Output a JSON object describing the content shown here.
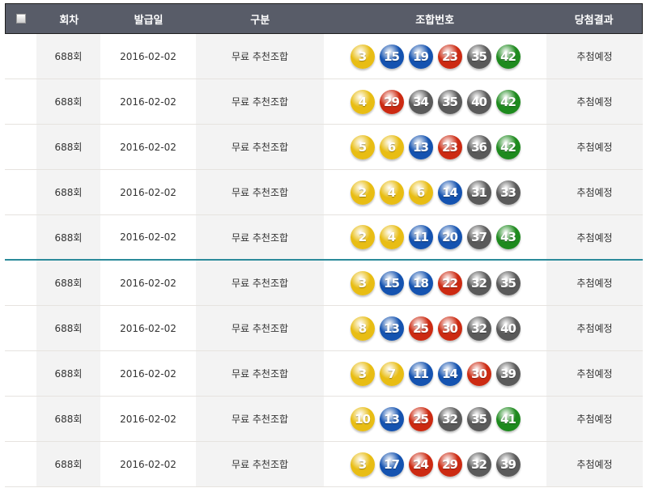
{
  "header": {
    "round": "회차",
    "issue_date": "발급일",
    "type": "구분",
    "numbers": "조합번호",
    "result": "당첨결과"
  },
  "ball_colors": {
    "1-10": "#e8bd14",
    "11-20": "#1553b0",
    "21-30": "#cc2a12",
    "31-40": "#5a5a5a",
    "41-45": "#1e8a1e"
  },
  "rows": [
    {
      "round": "688회",
      "date": "2016-02-02",
      "type": "무료 추천조합",
      "numbers": [
        3,
        15,
        19,
        23,
        35,
        42
      ],
      "result": "추첨예정"
    },
    {
      "round": "688회",
      "date": "2016-02-02",
      "type": "무료 추천조합",
      "numbers": [
        4,
        29,
        34,
        35,
        40,
        42
      ],
      "result": "추첨예정"
    },
    {
      "round": "688회",
      "date": "2016-02-02",
      "type": "무료 추천조합",
      "numbers": [
        5,
        6,
        13,
        23,
        36,
        42
      ],
      "result": "추첨예정"
    },
    {
      "round": "688회",
      "date": "2016-02-02",
      "type": "무료 추천조합",
      "numbers": [
        2,
        4,
        6,
        14,
        31,
        33
      ],
      "result": "추첨예정"
    },
    {
      "round": "688회",
      "date": "2016-02-02",
      "type": "무료 추천조합",
      "numbers": [
        2,
        4,
        11,
        20,
        37,
        43
      ],
      "result": "추첨예정"
    },
    {
      "round": "688회",
      "date": "2016-02-02",
      "type": "무료 추천조합",
      "numbers": [
        3,
        15,
        18,
        22,
        32,
        35
      ],
      "result": "추첨예정"
    },
    {
      "round": "688회",
      "date": "2016-02-02",
      "type": "무료 추천조합",
      "numbers": [
        8,
        13,
        25,
        30,
        32,
        40
      ],
      "result": "추첨예정"
    },
    {
      "round": "688회",
      "date": "2016-02-02",
      "type": "무료 추천조합",
      "numbers": [
        3,
        7,
        11,
        14,
        30,
        39
      ],
      "result": "추첨예정"
    },
    {
      "round": "688회",
      "date": "2016-02-02",
      "type": "무료 추천조합",
      "numbers": [
        10,
        13,
        25,
        32,
        35,
        41
      ],
      "result": "추첨예정"
    },
    {
      "round": "688회",
      "date": "2016-02-02",
      "type": "무료 추천조합",
      "numbers": [
        3,
        17,
        24,
        29,
        32,
        39
      ],
      "result": "추첨예정"
    }
  ]
}
